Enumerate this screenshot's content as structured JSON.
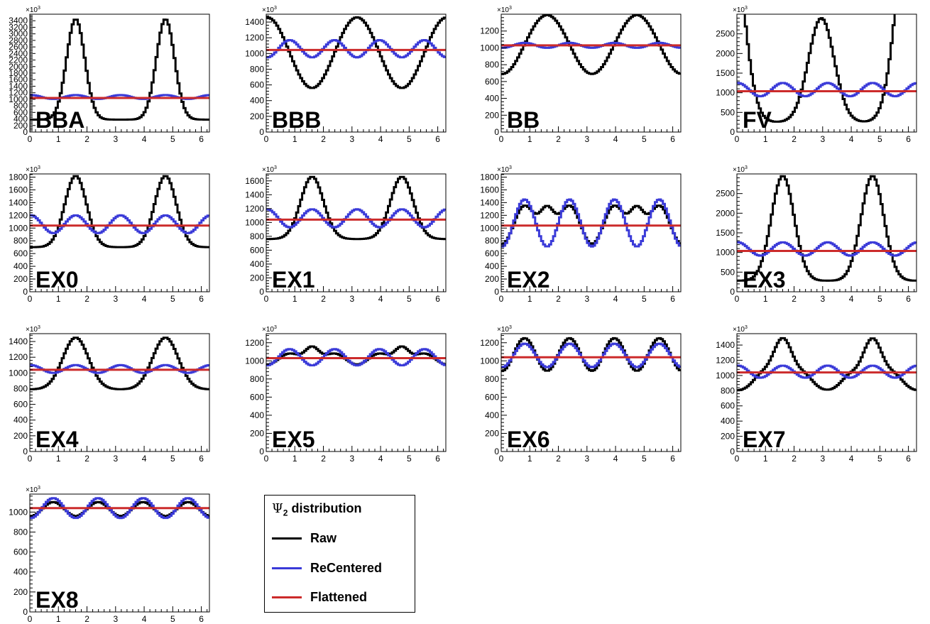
{
  "colors": {
    "raw": "#000000",
    "recentered": "#3a3ad8",
    "flattened": "#cc2b2b"
  },
  "legend": {
    "title_prefix": "Ψ",
    "title_sub": "2",
    "title_suffix": " distribution",
    "entries": [
      {
        "key": "raw",
        "label": "Raw"
      },
      {
        "key": "recentered",
        "label": "ReCentered"
      },
      {
        "key": "flattened",
        "label": "Flattened"
      }
    ]
  },
  "chart_data": [
    {
      "type": "line",
      "title": "BBA",
      "xlim": [
        0,
        6.2832
      ],
      "ylim": [
        0,
        3600
      ],
      "scale_label": "×10",
      "scale_exp": "3",
      "xticks": [
        0,
        1,
        2,
        3,
        4,
        5,
        6
      ],
      "yticks": [
        0,
        200,
        400,
        600,
        800,
        1000,
        1200,
        1400,
        1600,
        1800,
        2000,
        2200,
        2400,
        2600,
        2800,
        3000,
        3200,
        3400
      ],
      "series": [
        {
          "name": "Raw",
          "model": {
            "base": 380,
            "peak": 3450,
            "centers": [
              1.57,
              4.71
            ],
            "width": 0.32
          }
        },
        {
          "name": "ReCentered",
          "model": {
            "c": 1070,
            "terms": [
              [
                4,
                60,
                0
              ]
            ]
          }
        },
        {
          "name": "Flattened",
          "model": {
            "c": 1040,
            "terms": []
          }
        }
      ]
    },
    {
      "type": "line",
      "title": "BBB",
      "xlim": [
        0,
        6.2832
      ],
      "ylim": [
        0,
        1500
      ],
      "scale_label": "×10",
      "scale_exp": "3",
      "xticks": [
        0,
        1,
        2,
        3,
        4,
        5,
        6
      ],
      "yticks": [
        0,
        200,
        400,
        600,
        800,
        1000,
        1200,
        1400
      ],
      "series": [
        {
          "name": "Raw",
          "model": {
            "c": 1010,
            "terms": [
              [
                2,
                450,
                0
              ]
            ]
          }
        },
        {
          "name": "ReCentered",
          "model": {
            "c": 1060,
            "terms": [
              [
                4,
                -110,
                0
              ]
            ]
          }
        },
        {
          "name": "Flattened",
          "model": {
            "c": 1045,
            "terms": []
          }
        }
      ]
    },
    {
      "type": "line",
      "title": "BB",
      "xlim": [
        0,
        6.2832
      ],
      "ylim": [
        0,
        1400
      ],
      "scale_label": "×10",
      "scale_exp": "3",
      "xticks": [
        0,
        1,
        2,
        3,
        4,
        5,
        6
      ],
      "yticks": [
        0,
        200,
        400,
        600,
        800,
        1000,
        1200
      ],
      "series": [
        {
          "name": "Raw",
          "model": {
            "c": 1040,
            "terms": [
              [
                2,
                -350,
                0
              ]
            ]
          }
        },
        {
          "name": "ReCentered",
          "model": {
            "c": 1030,
            "terms": [
              [
                4,
                -30,
                0
              ]
            ]
          }
        },
        {
          "name": "Flattened",
          "model": {
            "c": 1030,
            "terms": []
          }
        }
      ]
    },
    {
      "type": "line",
      "title": "FV",
      "xlim": [
        0,
        6.2832
      ],
      "ylim": [
        0,
        3000
      ],
      "scale_label": "×10",
      "scale_exp": "3",
      "xticks": [
        0,
        1,
        2,
        3,
        4,
        5,
        6
      ],
      "yticks": [
        0,
        500,
        1000,
        1500,
        2000,
        2500
      ],
      "series": [
        {
          "name": "Raw",
          "model": {
            "base": 250,
            "peak": 2900,
            "centers": [
              -0.28,
              2.92,
              6.0
            ],
            "width": 0.45
          }
        },
        {
          "name": "ReCentered",
          "model": {
            "c": 1080,
            "terms": [
              [
                4,
                170,
                0
              ]
            ]
          }
        },
        {
          "name": "Flattened",
          "model": {
            "c": 1040,
            "terms": []
          }
        }
      ]
    },
    {
      "type": "line",
      "title": "EX0",
      "xlim": [
        0,
        6.2832
      ],
      "ylim": [
        0,
        1850
      ],
      "scale_label": "×10",
      "scale_exp": "3",
      "xticks": [
        0,
        1,
        2,
        3,
        4,
        5,
        6
      ],
      "yticks": [
        0,
        200,
        400,
        600,
        800,
        1000,
        1200,
        1400,
        1600,
        1800
      ],
      "series": [
        {
          "name": "Raw",
          "model": {
            "base": 700,
            "peak": 1820,
            "centers": [
              1.57,
              4.71
            ],
            "width": 0.38
          }
        },
        {
          "name": "ReCentered",
          "model": {
            "c": 1060,
            "terms": [
              [
                4,
                140,
                0
              ]
            ]
          }
        },
        {
          "name": "Flattened",
          "model": {
            "c": 1040,
            "terms": []
          }
        }
      ]
    },
    {
      "type": "line",
      "title": "EX1",
      "xlim": [
        0,
        6.2832
      ],
      "ylim": [
        0,
        1700
      ],
      "scale_label": "×10",
      "scale_exp": "3",
      "xticks": [
        0,
        1,
        2,
        3,
        4,
        5,
        6
      ],
      "yticks": [
        0,
        200,
        400,
        600,
        800,
        1000,
        1200,
        1400,
        1600
      ],
      "series": [
        {
          "name": "Raw",
          "model": {
            "base": 760,
            "peak": 1660,
            "centers": [
              1.57,
              4.71
            ],
            "width": 0.4
          }
        },
        {
          "name": "ReCentered",
          "model": {
            "c": 1060,
            "terms": [
              [
                4,
                130,
                0
              ]
            ]
          }
        },
        {
          "name": "Flattened",
          "model": {
            "c": 1040,
            "terms": []
          }
        }
      ]
    },
    {
      "type": "line",
      "title": "EX2",
      "xlim": [
        0,
        6.2832
      ],
      "ylim": [
        0,
        1850
      ],
      "scale_label": "×10",
      "scale_exp": "3",
      "xticks": [
        0,
        1,
        2,
        3,
        4,
        5,
        6
      ],
      "yticks": [
        0,
        200,
        400,
        600,
        800,
        1000,
        1200,
        1400,
        1600,
        1800
      ],
      "series": [
        {
          "name": "Raw",
          "model": {
            "c": 1050,
            "terms": [
              [
                4,
                -300,
                0
              ]
            ],
            "bumps": [
              [
                1.57,
                600,
                0.25
              ],
              [
                4.71,
                600,
                0.25
              ]
            ]
          }
        },
        {
          "name": "ReCentered",
          "model": {
            "c": 1080,
            "terms": [
              [
                4,
                -370,
                0
              ]
            ]
          }
        },
        {
          "name": "Flattened",
          "model": {
            "c": 1040,
            "terms": []
          }
        }
      ]
    },
    {
      "type": "line",
      "title": "EX3",
      "xlim": [
        0,
        6.2832
      ],
      "ylim": [
        0,
        3000
      ],
      "scale_label": "×10",
      "scale_exp": "3",
      "xticks": [
        0,
        1,
        2,
        3,
        4,
        5,
        6
      ],
      "yticks": [
        0,
        500,
        1000,
        1500,
        2000,
        2500
      ],
      "series": [
        {
          "name": "Raw",
          "model": {
            "base": 280,
            "peak": 2950,
            "centers": [
              1.57,
              4.71
            ],
            "width": 0.4
          }
        },
        {
          "name": "ReCentered",
          "model": {
            "c": 1090,
            "terms": [
              [
                4,
                170,
                0
              ]
            ]
          }
        },
        {
          "name": "Flattened",
          "model": {
            "c": 1040,
            "terms": []
          }
        }
      ]
    },
    {
      "type": "line",
      "title": "EX4",
      "xlim": [
        0,
        6.2832
      ],
      "ylim": [
        0,
        1500
      ],
      "scale_label": "×10",
      "scale_exp": "3",
      "xticks": [
        0,
        1,
        2,
        3,
        4,
        5,
        6
      ],
      "yticks": [
        0,
        200,
        400,
        600,
        800,
        1000,
        1200,
        1400
      ],
      "series": [
        {
          "name": "Raw",
          "model": {
            "base": 790,
            "peak": 1450,
            "centers": [
              1.57,
              4.71
            ],
            "width": 0.45
          }
        },
        {
          "name": "ReCentered",
          "model": {
            "c": 1050,
            "terms": [
              [
                4,
                50,
                0
              ]
            ]
          }
        },
        {
          "name": "Flattened",
          "model": {
            "c": 1040,
            "terms": []
          }
        }
      ]
    },
    {
      "type": "line",
      "title": "EX5",
      "xlim": [
        0,
        6.2832
      ],
      "ylim": [
        0,
        1300
      ],
      "scale_label": "×10",
      "scale_exp": "3",
      "xticks": [
        0,
        1,
        2,
        3,
        4,
        5,
        6
      ],
      "yticks": [
        0,
        200,
        400,
        600,
        800,
        1000,
        1200
      ],
      "series": [
        {
          "name": "Raw",
          "model": {
            "c": 1020,
            "terms": [
              [
                4,
                -60,
                0
              ]
            ],
            "bumps": [
              [
                1.57,
                200,
                0.25
              ],
              [
                4.71,
                200,
                0.25
              ]
            ]
          }
        },
        {
          "name": "ReCentered",
          "model": {
            "c": 1040,
            "terms": [
              [
                4,
                -90,
                0
              ]
            ]
          }
        },
        {
          "name": "Flattened",
          "model": {
            "c": 1030,
            "terms": []
          }
        }
      ]
    },
    {
      "type": "line",
      "title": "EX6",
      "xlim": [
        0,
        6.2832
      ],
      "ylim": [
        0,
        1300
      ],
      "scale_label": "×10",
      "scale_exp": "3",
      "xticks": [
        0,
        1,
        2,
        3,
        4,
        5,
        6
      ],
      "yticks": [
        0,
        200,
        400,
        600,
        800,
        1000,
        1200
      ],
      "series": [
        {
          "name": "Raw",
          "model": {
            "c": 1070,
            "terms": [
              [
                4,
                -180,
                0
              ]
            ]
          }
        },
        {
          "name": "ReCentered",
          "model": {
            "c": 1060,
            "terms": [
              [
                4,
                -130,
                0
              ]
            ]
          }
        },
        {
          "name": "Flattened",
          "model": {
            "c": 1040,
            "terms": []
          }
        }
      ]
    },
    {
      "type": "line",
      "title": "EX7",
      "xlim": [
        0,
        6.2832
      ],
      "ylim": [
        0,
        1550
      ],
      "scale_label": "×10",
      "scale_exp": "3",
      "xticks": [
        0,
        1,
        2,
        3,
        4,
        5,
        6
      ],
      "yticks": [
        0,
        200,
        400,
        600,
        800,
        1000,
        1200,
        1400
      ],
      "series": [
        {
          "name": "Raw",
          "model": {
            "base": 800,
            "peak": 1480,
            "centers": [
              1.57,
              4.71
            ],
            "width": 0.35
          },
          "bumpsExtra": [
            [
              0.8,
              180,
              0.3
            ],
            [
              2.35,
              180,
              0.3
            ],
            [
              3.9,
              180,
              0.3
            ],
            [
              5.5,
              180,
              0.3
            ]
          ]
        },
        {
          "name": "ReCentered",
          "model": {
            "c": 1050,
            "terms": [
              [
                4,
                80,
                0
              ]
            ]
          }
        },
        {
          "name": "Flattened",
          "model": {
            "c": 1040,
            "terms": []
          }
        }
      ]
    },
    {
      "type": "line",
      "title": "EX8",
      "xlim": [
        0,
        6.2832
      ],
      "ylim": [
        0,
        1180
      ],
      "scale_label": "×10",
      "scale_exp": "3",
      "xticks": [
        0,
        1,
        2,
        3,
        4,
        5,
        6
      ],
      "yticks": [
        0,
        200,
        400,
        600,
        800,
        1000
      ],
      "series": [
        {
          "name": "Raw",
          "model": {
            "c": 1030,
            "terms": [
              [
                4,
                -70,
                0
              ]
            ]
          }
        },
        {
          "name": "ReCentered",
          "model": {
            "c": 1040,
            "terms": [
              [
                4,
                -100,
                0
              ]
            ]
          }
        },
        {
          "name": "Flattened",
          "model": {
            "c": 1040,
            "terms": []
          }
        }
      ]
    }
  ]
}
